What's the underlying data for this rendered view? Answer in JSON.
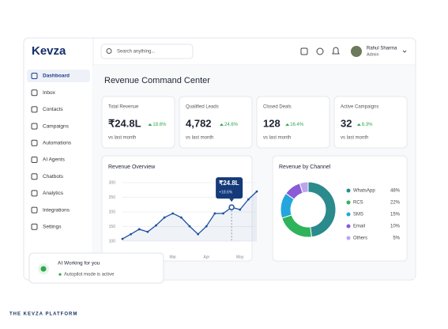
{
  "brand": "Kevza",
  "search_placeholder": "Search anything...",
  "user": {
    "name": "Rahul Sharma",
    "role": "Admin"
  },
  "nav": [
    "Dashboard",
    "Inbox",
    "Contacts",
    "Campaigns",
    "Automations",
    "AI Agents",
    "Chatbots",
    "Analytics",
    "Integrations",
    "Settings"
  ],
  "page_title": "Revenue Command Center",
  "kpis": [
    {
      "label": "Total Revenue",
      "value": "₹24.8L",
      "change": "18.6%",
      "note": "vs last month"
    },
    {
      "label": "Qualified Leads",
      "value": "4,782",
      "change": "24.6%",
      "note": "vs last month"
    },
    {
      "label": "Closed Deals",
      "value": "128",
      "change": "16.4%",
      "note": "vs last month"
    },
    {
      "label": "Active Campaigns",
      "value": "32",
      "change": "8.3%",
      "note": "vs last month"
    }
  ],
  "chart_data": [
    {
      "type": "line",
      "title": "Revenue Overview",
      "categories": [
        null,
        null,
        null,
        null,
        null,
        null,
        "Mar",
        null,
        null,
        null,
        "Apr",
        null,
        null,
        null,
        "May",
        null,
        null
      ],
      "values": [
        108,
        124,
        141,
        132,
        154,
        181,
        195,
        181,
        151,
        124,
        151,
        195,
        195,
        216,
        208,
        243,
        270
      ],
      "color": "#1f4fa0",
      "ylim": [
        100,
        300
      ],
      "yticks": [
        100,
        150,
        200,
        250,
        300
      ],
      "annotation": {
        "label": "₹24.8L",
        "sublabel": "+18.6%"
      }
    },
    {
      "type": "pie",
      "title": "Revenue by Channel",
      "categories": [
        "WhatsApp",
        "RCS",
        "SMS",
        "Email",
        "Others"
      ],
      "values": [
        48,
        22,
        15,
        10,
        5
      ],
      "value_labels": [
        "48%",
        "22%",
        "15%",
        "10%",
        "5%"
      ],
      "colors": [
        "#2a8a8c",
        "#2fb35a",
        "#22a6dd",
        "#8a5bd6",
        "#b9a6ec"
      ]
    }
  ],
  "toast": {
    "title": "AI Working for you",
    "status": "Autopilot mode is active"
  },
  "footer": "THE KEVZA PLATFORM"
}
